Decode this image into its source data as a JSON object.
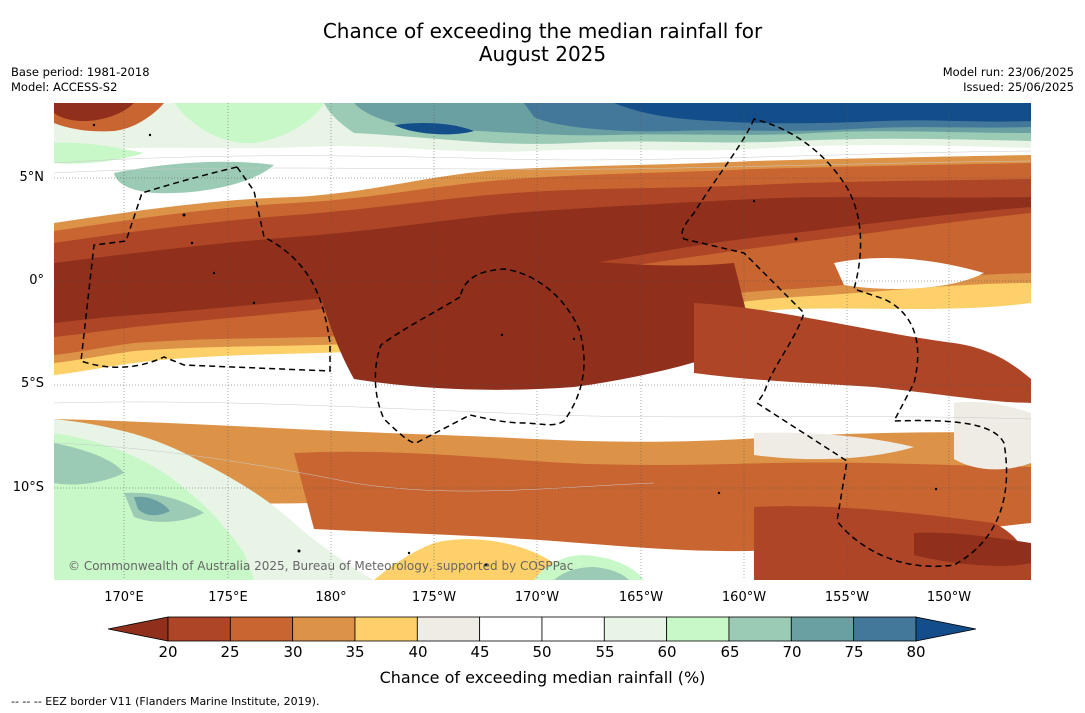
{
  "title_line1": "Chance of exceeding the median rainfall for",
  "title_line2": "August 2025",
  "base_period": "Base period: 1981-2018",
  "model": "Model: ACCESS-S2",
  "model_run": "Model run: 23/06/2025",
  "issued": "Issued: 25/06/2025",
  "lat_labels": [
    "5°N",
    "0°",
    "5°S",
    "10°S"
  ],
  "lon_labels": [
    "170°E",
    "175°E",
    "180°",
    "175°W",
    "170°W",
    "165°W",
    "160°W",
    "155°W",
    "150°W"
  ],
  "copyright": "© Commonwealth of Australia 2025, Bureau of Meteorology, supported by COSPPac",
  "colorbar": {
    "ticks": [
      "20",
      "25",
      "30",
      "35",
      "40",
      "45",
      "50",
      "55",
      "60",
      "65",
      "70",
      "75",
      "80"
    ],
    "colors": [
      "#8f2f1c",
      "#ad4526",
      "#c96531",
      "#dd9347",
      "#fdd06a",
      "#efebe5",
      "#ffffff",
      "#ffffff",
      "#e8f4e6",
      "#c8f8c8",
      "#9ccbb5",
      "#6ba0a2",
      "#44789a",
      "#134e8a"
    ],
    "label": "Chance of exceeding median rainfall (%)"
  },
  "eez_note": "-- -- -- EEZ border V11 (Flanders Marine Institute, 2019)."
}
